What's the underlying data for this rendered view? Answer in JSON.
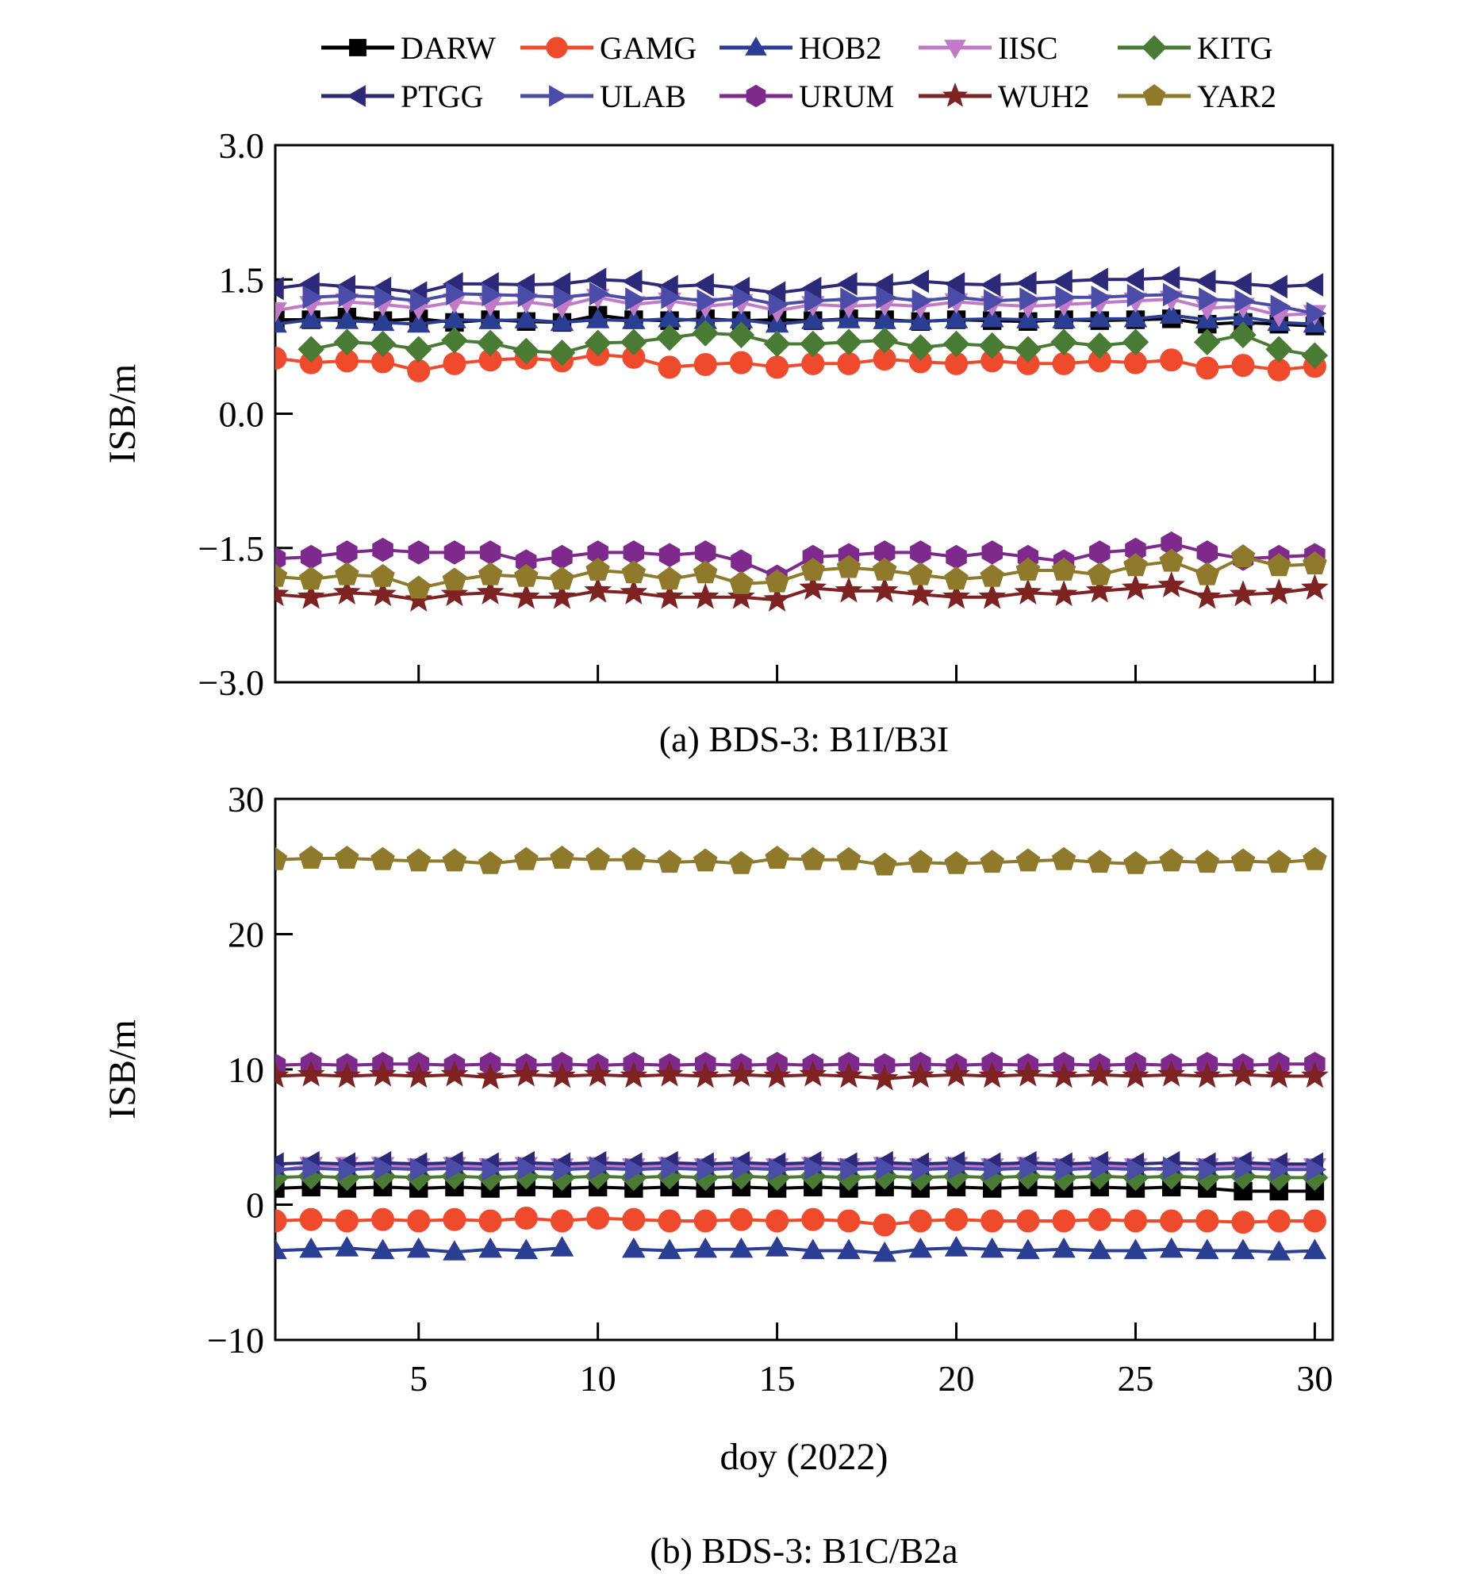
{
  "legend": [
    {
      "name": "DARW",
      "color": "#000000",
      "marker": "square"
    },
    {
      "name": "GAMG",
      "color": "#f04a2c",
      "marker": "circle"
    },
    {
      "name": "HOB2",
      "color": "#2a3f94",
      "marker": "triangle-up"
    },
    {
      "name": "IISC",
      "color": "#c07ac8",
      "marker": "triangle-down"
    },
    {
      "name": "KITG",
      "color": "#4a7b34",
      "marker": "diamond"
    },
    {
      "name": "PTGG",
      "color": "#2c2a78",
      "marker": "triangle-left"
    },
    {
      "name": "ULAB",
      "color": "#4b4ca8",
      "marker": "triangle-right"
    },
    {
      "name": "URUM",
      "color": "#7d2a8c",
      "marker": "hexagon"
    },
    {
      "name": "WUH2",
      "color": "#7e2222",
      "marker": "star"
    },
    {
      "name": "YAR2",
      "color": "#8e7a2a",
      "marker": "pentagon"
    }
  ],
  "chart_data": [
    {
      "type": "line",
      "title": "",
      "caption": "(a) BDS-3: B1I/B3I",
      "xlabel": "",
      "ylabel": "ISB/m",
      "xlim": [
        1,
        30.5
      ],
      "ylim": [
        -3.0,
        3.0
      ],
      "yticks": [
        -3.0,
        -1.5,
        0.0,
        1.5,
        3.0
      ],
      "ytick_labels": [
        "−3.0",
        "−1.5",
        "0.0",
        "1.5",
        "3.0"
      ],
      "xticks": [
        5,
        10,
        15,
        20,
        25,
        30
      ],
      "xtick_labels": [],
      "x": [
        1,
        2,
        3,
        4,
        5,
        6,
        7,
        8,
        9,
        10,
        11,
        12,
        13,
        14,
        15,
        16,
        17,
        18,
        19,
        20,
        21,
        22,
        23,
        24,
        25,
        26,
        27,
        28,
        29,
        30
      ],
      "series": [
        {
          "name": "DARW",
          "values": [
            1.05,
            1.05,
            1.08,
            1.04,
            1.06,
            1.02,
            1.05,
            1.03,
            1.02,
            1.1,
            1.05,
            1.04,
            1.06,
            1.04,
            1.05,
            1.04,
            1.06,
            1.05,
            1.03,
            1.05,
            1.04,
            1.03,
            1.05,
            1.04,
            1.05,
            1.06,
            1.0,
            1.02,
            1.0,
            0.98
          ]
        },
        {
          "name": "GAMG",
          "values": [
            0.62,
            0.57,
            0.59,
            0.58,
            0.48,
            0.56,
            0.6,
            0.62,
            0.59,
            0.66,
            0.63,
            0.52,
            0.55,
            0.57,
            0.52,
            0.56,
            0.56,
            0.61,
            0.58,
            0.56,
            0.59,
            0.56,
            0.56,
            0.59,
            0.57,
            0.6,
            0.51,
            0.54,
            0.49,
            0.53
          ]
        },
        {
          "name": "HOB2",
          "values": [
            1.0,
            1.05,
            1.04,
            1.02,
            1.0,
            1.05,
            1.04,
            1.05,
            1.02,
            1.05,
            1.04,
            1.06,
            1.04,
            1.05,
            1.0,
            1.04,
            1.05,
            1.04,
            1.03,
            1.05,
            1.06,
            1.05,
            1.05,
            1.06,
            1.06,
            1.1,
            1.05,
            1.08,
            1.02,
            1.0
          ]
        },
        {
          "name": "IISC",
          "values": [
            1.15,
            1.22,
            1.25,
            1.22,
            1.18,
            1.25,
            1.22,
            1.25,
            1.2,
            1.3,
            1.22,
            1.26,
            1.2,
            1.24,
            1.15,
            1.22,
            1.2,
            1.22,
            1.2,
            1.25,
            1.22,
            1.2,
            1.22,
            1.24,
            1.26,
            1.28,
            1.18,
            1.2,
            1.1,
            1.12
          ]
        },
        {
          "name": "KITG",
          "values": [
            null,
            0.72,
            0.8,
            0.78,
            0.72,
            0.82,
            0.79,
            0.7,
            0.68,
            0.79,
            0.8,
            0.85,
            0.9,
            0.88,
            0.78,
            0.78,
            0.8,
            0.82,
            0.74,
            0.78,
            0.76,
            0.72,
            0.8,
            0.76,
            0.8,
            null,
            0.8,
            0.88,
            0.72,
            0.65
          ]
        },
        {
          "name": "PTGG",
          "values": [
            1.4,
            1.45,
            1.42,
            1.4,
            1.35,
            1.45,
            1.45,
            1.44,
            1.45,
            1.5,
            1.48,
            1.42,
            1.44,
            1.4,
            1.35,
            1.4,
            1.45,
            1.44,
            1.48,
            1.45,
            1.44,
            1.46,
            1.48,
            1.5,
            1.5,
            1.52,
            1.48,
            1.45,
            1.42,
            1.44
          ]
        },
        {
          "name": "ULAB",
          "values": [
            null,
            1.3,
            1.32,
            1.3,
            1.26,
            1.34,
            1.33,
            1.32,
            1.3,
            1.34,
            1.28,
            1.3,
            1.26,
            1.3,
            1.22,
            1.26,
            1.28,
            1.3,
            1.26,
            1.3,
            1.26,
            1.28,
            1.3,
            1.3,
            1.32,
            1.33,
            1.28,
            1.26,
            1.2,
            1.12
          ]
        },
        {
          "name": "URUM",
          "values": [
            -1.62,
            -1.6,
            -1.55,
            -1.52,
            -1.55,
            -1.55,
            -1.55,
            -1.65,
            -1.6,
            -1.55,
            -1.55,
            -1.58,
            -1.55,
            -1.65,
            -1.82,
            -1.6,
            -1.58,
            -1.55,
            -1.55,
            -1.6,
            -1.55,
            -1.6,
            -1.65,
            -1.55,
            -1.52,
            -1.45,
            -1.55,
            -1.62,
            -1.6,
            -1.58
          ]
        },
        {
          "name": "WUH2",
          "values": [
            -2.02,
            -2.05,
            -2.0,
            -2.02,
            -2.08,
            -2.02,
            -2.0,
            -2.05,
            -2.05,
            -1.98,
            -2.0,
            -2.05,
            -2.05,
            -2.05,
            -2.08,
            -1.95,
            -1.98,
            -1.98,
            -2.02,
            -2.05,
            -2.05,
            -2.0,
            -2.02,
            -1.98,
            -1.95,
            -1.92,
            -2.05,
            -2.02,
            -2.0,
            -1.95
          ]
        },
        {
          "name": "YAR2",
          "values": [
            -1.82,
            -1.85,
            -1.8,
            -1.82,
            -1.95,
            -1.86,
            -1.8,
            -1.82,
            -1.85,
            -1.75,
            -1.78,
            -1.85,
            -1.78,
            -1.9,
            -1.88,
            -1.75,
            -1.72,
            -1.75,
            -1.8,
            -1.85,
            -1.82,
            -1.75,
            -1.75,
            -1.8,
            -1.7,
            -1.65,
            -1.8,
            -1.6,
            -1.7,
            -1.68
          ]
        }
      ]
    },
    {
      "type": "line",
      "title": "",
      "caption": "(b) BDS-3: B1C/B2a",
      "xlabel": "doy (2022)",
      "ylabel": "ISB/m",
      "xlim": [
        1,
        30.5
      ],
      "ylim": [
        -10,
        30
      ],
      "yticks": [
        -10,
        0,
        10,
        20,
        30
      ],
      "ytick_labels": [
        "−10",
        "0",
        "10",
        "20",
        "30"
      ],
      "xticks": [
        5,
        10,
        15,
        20,
        25,
        30
      ],
      "xtick_labels": [
        "5",
        "10",
        "15",
        "20",
        "25",
        "30"
      ],
      "x": [
        1,
        2,
        3,
        4,
        5,
        6,
        7,
        8,
        9,
        10,
        11,
        12,
        13,
        14,
        15,
        16,
        17,
        18,
        19,
        20,
        21,
        22,
        23,
        24,
        25,
        26,
        27,
        28,
        29,
        30
      ],
      "series": [
        {
          "name": "DARW",
          "values": [
            1.2,
            1.3,
            1.2,
            1.3,
            1.2,
            1.3,
            1.2,
            1.3,
            1.2,
            1.3,
            1.2,
            1.3,
            1.2,
            1.3,
            1.2,
            1.3,
            1.2,
            1.3,
            1.2,
            1.3,
            1.2,
            1.3,
            1.2,
            1.3,
            1.2,
            1.3,
            1.2,
            1.0,
            1.0,
            1.0
          ]
        },
        {
          "name": "GAMG",
          "values": [
            -1.2,
            -1.1,
            -1.2,
            -1.1,
            -1.2,
            -1.1,
            -1.2,
            -1.0,
            -1.2,
            -1.0,
            -1.1,
            -1.2,
            -1.2,
            -1.1,
            -1.2,
            -1.1,
            -1.2,
            -1.5,
            -1.2,
            -1.1,
            -1.2,
            -1.2,
            -1.2,
            -1.1,
            -1.2,
            -1.2,
            -1.2,
            -1.3,
            -1.2,
            -1.2
          ]
        },
        {
          "name": "HOB2",
          "values": [
            -3.4,
            -3.3,
            -3.2,
            -3.4,
            -3.3,
            -3.5,
            -3.3,
            -3.4,
            -3.2,
            null,
            -3.3,
            -3.4,
            -3.3,
            -3.3,
            -3.2,
            -3.4,
            -3.4,
            -3.6,
            -3.3,
            -3.2,
            -3.3,
            -3.4,
            -3.3,
            -3.4,
            -3.4,
            -3.3,
            -3.4,
            -3.4,
            -3.5,
            -3.4
          ]
        },
        {
          "name": "IISC",
          "values": [
            2.5,
            2.9,
            2.9,
            2.9,
            2.8,
            2.9,
            2.8,
            2.9,
            2.8,
            2.9,
            2.8,
            2.9,
            2.8,
            2.9,
            2.8,
            2.9,
            2.8,
            2.9,
            2.8,
            2.9,
            2.8,
            2.9,
            2.8,
            2.9,
            2.8,
            2.5,
            2.8,
            2.9,
            2.8,
            2.8
          ]
        },
        {
          "name": "KITG",
          "values": [
            2.0,
            2.1,
            2.0,
            2.1,
            2.0,
            2.1,
            2.0,
            2.1,
            2.0,
            2.1,
            2.0,
            2.1,
            2.0,
            2.1,
            2.0,
            2.1,
            2.0,
            2.1,
            2.0,
            2.1,
            2.0,
            2.1,
            2.0,
            2.1,
            2.0,
            2.1,
            2.0,
            2.1,
            2.0,
            2.0
          ]
        },
        {
          "name": "PTGG",
          "values": [
            3.0,
            3.1,
            3.0,
            3.1,
            3.0,
            3.1,
            3.0,
            3.1,
            3.0,
            3.1,
            3.0,
            3.1,
            3.0,
            3.1,
            3.0,
            3.1,
            3.0,
            3.1,
            3.0,
            3.1,
            3.0,
            3.1,
            3.0,
            3.1,
            3.0,
            3.1,
            3.0,
            3.1,
            3.0,
            3.0
          ]
        },
        {
          "name": "ULAB",
          "values": [
            2.6,
            2.7,
            2.6,
            2.7,
            2.6,
            2.7,
            2.6,
            2.7,
            2.6,
            2.7,
            2.6,
            2.7,
            2.6,
            2.7,
            2.6,
            2.7,
            2.6,
            2.7,
            2.6,
            2.7,
            2.6,
            2.7,
            2.6,
            2.7,
            2.6,
            2.7,
            2.6,
            2.7,
            2.6,
            2.6
          ]
        },
        {
          "name": "URUM",
          "values": [
            10.3,
            10.4,
            10.3,
            10.4,
            10.4,
            10.3,
            10.4,
            10.3,
            10.4,
            10.3,
            10.4,
            10.3,
            10.4,
            10.3,
            10.4,
            10.3,
            10.4,
            10.3,
            10.4,
            10.3,
            10.4,
            10.3,
            10.4,
            10.3,
            10.4,
            10.3,
            10.4,
            10.3,
            10.4,
            10.4
          ]
        },
        {
          "name": "WUH2",
          "values": [
            9.5,
            9.6,
            9.5,
            9.6,
            9.5,
            9.6,
            9.4,
            9.6,
            9.5,
            9.6,
            9.5,
            9.6,
            9.5,
            9.6,
            9.5,
            9.6,
            9.5,
            9.3,
            9.5,
            9.6,
            9.5,
            9.6,
            9.5,
            9.6,
            9.5,
            9.6,
            9.5,
            9.6,
            9.5,
            9.5
          ]
        },
        {
          "name": "YAR2",
          "values": [
            25.5,
            25.6,
            25.6,
            25.5,
            25.4,
            25.4,
            25.2,
            25.5,
            25.6,
            25.5,
            25.5,
            25.3,
            25.4,
            25.2,
            25.6,
            25.5,
            25.5,
            25.1,
            25.3,
            25.2,
            25.3,
            25.4,
            25.5,
            25.3,
            25.2,
            25.4,
            25.3,
            25.4,
            25.3,
            25.5
          ]
        }
      ]
    }
  ]
}
